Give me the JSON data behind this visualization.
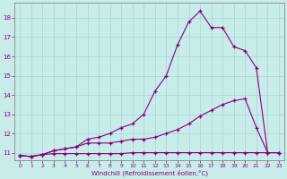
{
  "xlabel": "Windchill (Refroidissement éolien,°C)",
  "bg_color": "#c8ecea",
  "grid_color": "#a8d4d2",
  "line_color": "#880077",
  "xlim": [
    -0.5,
    23.5
  ],
  "ylim": [
    10.6,
    18.8
  ],
  "yticks": [
    11,
    12,
    13,
    14,
    15,
    16,
    17,
    18
  ],
  "xticks": [
    0,
    1,
    2,
    3,
    4,
    5,
    6,
    7,
    8,
    9,
    10,
    11,
    12,
    13,
    14,
    15,
    16,
    17,
    18,
    19,
    20,
    21,
    22,
    23
  ],
  "series": [
    {
      "x": [
        0,
        1,
        2,
        3,
        4,
        5,
        6,
        7,
        8,
        9,
        10,
        11,
        12,
        13,
        14,
        15,
        16,
        17,
        18,
        19,
        20,
        21,
        22,
        23
      ],
      "y": [
        10.85,
        10.8,
        10.9,
        10.95,
        10.95,
        10.95,
        10.95,
        10.95,
        10.95,
        10.95,
        11.0,
        11.0,
        11.0,
        11.0,
        11.0,
        11.0,
        11.0,
        11.0,
        11.0,
        11.0,
        11.0,
        11.0,
        11.0,
        11.0
      ]
    },
    {
      "x": [
        0,
        1,
        2,
        3,
        4,
        5,
        6,
        7,
        8,
        9,
        10,
        11,
        12,
        13,
        14,
        15,
        16,
        17,
        18,
        19,
        20,
        21,
        22,
        23
      ],
      "y": [
        10.85,
        10.8,
        10.9,
        11.1,
        11.2,
        11.3,
        11.5,
        11.5,
        11.5,
        11.6,
        11.7,
        11.7,
        11.8,
        12.0,
        12.2,
        12.5,
        12.9,
        13.2,
        13.5,
        13.7,
        13.8,
        12.3,
        11.0,
        11.0
      ]
    },
    {
      "x": [
        0,
        1,
        2,
        3,
        4,
        5,
        6,
        7,
        8,
        9,
        10,
        11,
        12,
        13,
        14,
        15,
        16,
        17,
        18,
        19,
        20,
        21,
        22,
        23
      ],
      "y": [
        10.85,
        10.8,
        10.9,
        11.1,
        11.2,
        11.3,
        11.7,
        11.8,
        12.0,
        12.3,
        12.5,
        13.0,
        14.2,
        15.0,
        16.6,
        17.8,
        18.35,
        17.5,
        17.5,
        16.5,
        16.3,
        15.4,
        11.0,
        11.0
      ]
    }
  ]
}
